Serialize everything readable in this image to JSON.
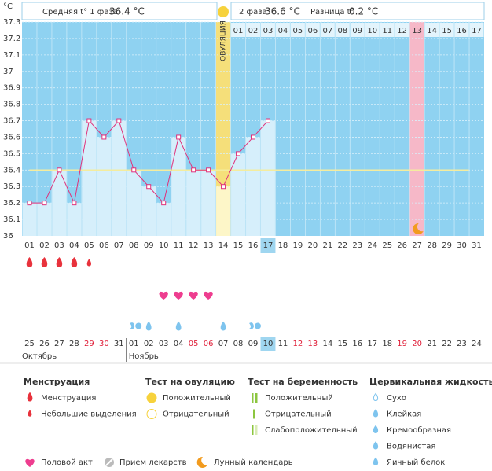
{
  "header": {
    "phase1_label": "Средняя t° 1 фаза",
    "phase1_value": "36.4 °С",
    "phase2_label": "2 фаза",
    "phase2_value": "36.6 °С",
    "diff_label": "Разница t°",
    "diff_value": "0.2 °С"
  },
  "chart_data": {
    "type": "line",
    "y_unit_label": "°C",
    "ylim": [
      36,
      37.3
    ],
    "yticks": [
      36,
      36.1,
      36.2,
      36.3,
      36.4,
      36.5,
      36.6,
      36.7,
      36.8,
      36.9,
      37,
      37.1,
      37.2,
      37.3
    ],
    "grid": true,
    "categories": [
      "01",
      "02",
      "03",
      "04",
      "05",
      "06",
      "07",
      "08",
      "09",
      "10",
      "11",
      "12",
      "13",
      "14",
      "15",
      "16",
      "17",
      "18",
      "19",
      "20",
      "21",
      "22",
      "23",
      "24",
      "25",
      "26",
      "27",
      "28",
      "29",
      "30",
      "31"
    ],
    "values": [
      36.2,
      36.2,
      36.4,
      36.2,
      36.7,
      36.6,
      36.7,
      36.4,
      36.3,
      36.2,
      36.6,
      36.4,
      36.4,
      36.3,
      36.5,
      36.6,
      36.7,
      null,
      null,
      null,
      null,
      null,
      null,
      null,
      null,
      null,
      null,
      null,
      null,
      null,
      null
    ],
    "line_color": "#e0307a",
    "bar_color": "#d6effb",
    "background_color": "#8fd2f1",
    "coverline": 36.4,
    "coverline_color": "#f4ec9e",
    "ovulation_category": "14",
    "ovulation_label": "ОВУЛЯЦИЯ",
    "phase2_days": [
      null,
      null,
      null,
      null,
      null,
      null,
      null,
      null,
      null,
      null,
      null,
      null,
      null,
      null,
      "01",
      "02",
      "03",
      "04",
      "05",
      "06",
      "07",
      "08",
      "09",
      "10",
      "11",
      "12",
      "13",
      "14",
      "15",
      "16",
      "17"
    ],
    "today_category": "17",
    "predicted_period_category": "27"
  },
  "symbols": {
    "menstruation": [
      "heavy",
      "heavy",
      "heavy",
      "heavy",
      "light",
      null,
      null,
      null,
      null,
      null,
      null,
      null,
      null,
      null,
      null,
      null,
      null,
      null,
      null,
      null,
      null,
      null,
      null,
      null,
      null,
      null,
      null,
      null,
      null,
      null,
      null
    ],
    "intercourse": [
      null,
      null,
      null,
      null,
      null,
      null,
      null,
      null,
      null,
      true,
      true,
      true,
      true,
      null,
      null,
      null,
      null,
      null,
      null,
      null,
      null,
      null,
      null,
      null,
      null,
      null,
      null,
      null,
      null,
      null,
      null
    ],
    "cervical_fluid": [
      null,
      null,
      null,
      null,
      null,
      null,
      null,
      "creamy",
      "egg_white",
      null,
      "egg_white",
      null,
      null,
      "egg_white",
      null,
      "creamy",
      null,
      null,
      null,
      null,
      null,
      null,
      null,
      null,
      null,
      null,
      null,
      null,
      null,
      null,
      null
    ]
  },
  "calendar": {
    "dates": [
      "25",
      "26",
      "27",
      "28",
      "29",
      "30",
      "31",
      "01",
      "02",
      "03",
      "04",
      "05",
      "06",
      "07",
      "08",
      "09",
      "10",
      "11",
      "12",
      "13",
      "14",
      "15",
      "16",
      "17",
      "18",
      "19",
      "20",
      "21",
      "22",
      "23",
      "24"
    ],
    "weekend": [
      false,
      false,
      false,
      false,
      true,
      true,
      false,
      false,
      false,
      false,
      false,
      true,
      true,
      false,
      false,
      false,
      false,
      false,
      true,
      true,
      false,
      false,
      false,
      false,
      false,
      true,
      true,
      false,
      false,
      false,
      false
    ],
    "today": "10",
    "months": [
      "Октябрь",
      "Ноябрь"
    ]
  },
  "legend": {
    "menstruation": {
      "title": "Менструация",
      "items": [
        "Менструация",
        "Небольшие выделения"
      ]
    },
    "ovulation_test": {
      "title": "Тест на овуляцию",
      "items": [
        "Положительный",
        "Отрицательный"
      ]
    },
    "pregnancy_test": {
      "title": "Тест на беременность",
      "items": [
        "Положительный",
        "Отрицательный",
        "Слабоположительный"
      ]
    },
    "cervical_fluid": {
      "title": "Цервикальная жидкость",
      "items": [
        "Сухо",
        "Клейкая",
        "Кремообразная",
        "Водянистая",
        "Яичный белок"
      ]
    },
    "other": [
      "Половой акт",
      "Прием лекарств",
      "Лунный календарь"
    ]
  }
}
